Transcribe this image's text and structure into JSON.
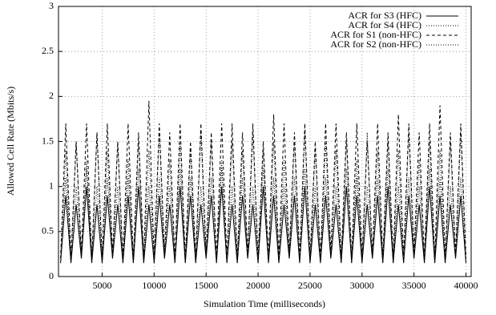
{
  "chart_data": {
    "type": "line",
    "xlabel": "Simulation Time (milliseconds)",
    "ylabel": "Allowed Cell Rate (Mbits/s)",
    "x": [
      1000,
      1500,
      2000,
      2500,
      3000,
      3500,
      4000,
      4500,
      5000,
      5500,
      6000,
      6500,
      7000,
      7500,
      8000,
      8500,
      9000,
      9500,
      10000,
      10500,
      11000,
      11500,
      12000,
      12500,
      13000,
      13500,
      14000,
      14500,
      15000,
      15500,
      16000,
      16500,
      17000,
      17500,
      18000,
      18500,
      19000,
      19500,
      20000,
      20500,
      21000,
      21500,
      22000,
      22500,
      23000,
      23500,
      24000,
      24500,
      25000,
      25500,
      26000,
      26500,
      27000,
      27500,
      28000,
      28500,
      29000,
      29500,
      30000,
      30500,
      31000,
      31500,
      32000,
      32500,
      33000,
      33500,
      34000,
      34500,
      35000,
      35500,
      36000,
      36500,
      37000,
      37500,
      38000,
      38500,
      39000,
      39500,
      40000
    ],
    "series": [
      {
        "name": "ACR for S3 (HFC)",
        "color": "#000000",
        "style": "solid",
        "values": [
          0.15,
          0.9,
          0.15,
          0.8,
          0.2,
          1.0,
          0.15,
          0.8,
          0.15,
          0.9,
          0.2,
          0.8,
          0.15,
          0.9,
          0.15,
          1.0,
          0.15,
          0.8,
          0.15,
          0.9,
          0.2,
          0.8,
          0.15,
          1.0,
          0.15,
          0.9,
          0.15,
          0.8,
          0.2,
          0.9,
          0.15,
          1.0,
          0.15,
          0.8,
          0.15,
          0.9,
          0.2,
          0.8,
          0.15,
          1.0,
          0.15,
          0.9,
          0.15,
          0.8,
          0.2,
          0.9,
          0.15,
          1.0,
          0.15,
          0.8,
          0.15,
          0.9,
          0.2,
          0.8,
          0.15,
          1.0,
          0.15,
          0.9,
          0.15,
          0.8,
          0.2,
          0.9,
          0.15,
          1.0,
          0.15,
          0.8,
          0.15,
          0.9,
          0.2,
          0.8,
          0.15,
          1.0,
          0.15,
          0.9,
          0.15,
          0.8,
          0.2,
          0.9,
          0.15
        ]
      },
      {
        "name": "ACR for S4 (HFC)",
        "color": "#000000",
        "style": "dotted",
        "values": [
          0.2,
          1.1,
          0.2,
          1.0,
          0.25,
          1.2,
          0.2,
          1.0,
          0.2,
          1.1,
          0.25,
          1.0,
          0.2,
          1.1,
          0.2,
          1.2,
          0.2,
          1.0,
          0.2,
          1.1,
          0.25,
          1.0,
          0.2,
          1.2,
          0.2,
          1.1,
          0.2,
          1.0,
          0.25,
          1.1,
          0.2,
          1.2,
          0.2,
          1.0,
          0.2,
          1.1,
          0.25,
          1.0,
          0.2,
          1.2,
          0.2,
          1.1,
          0.2,
          1.0,
          0.25,
          1.1,
          0.2,
          1.2,
          0.2,
          1.0,
          0.2,
          1.1,
          0.25,
          1.0,
          0.2,
          1.2,
          0.2,
          1.1,
          0.2,
          1.0,
          0.25,
          1.1,
          0.2,
          1.2,
          0.2,
          1.0,
          0.2,
          1.1,
          0.25,
          1.0,
          0.2,
          1.2,
          0.2,
          1.1,
          0.2,
          1.0,
          0.25,
          1.1,
          0.2
        ]
      },
      {
        "name": "ACR for S1 (non-HFC)",
        "color": "#000000",
        "style": "dashed",
        "values": [
          0.2,
          1.7,
          0.2,
          1.5,
          0.25,
          1.7,
          0.2,
          1.6,
          0.2,
          1.7,
          0.25,
          1.5,
          0.2,
          1.7,
          0.2,
          1.6,
          0.2,
          1.95,
          0.2,
          1.7,
          0.25,
          1.6,
          0.2,
          1.7,
          0.2,
          1.5,
          0.2,
          1.7,
          0.25,
          1.6,
          0.2,
          1.7,
          0.2,
          1.7,
          0.2,
          1.6,
          0.25,
          1.7,
          0.2,
          1.5,
          0.2,
          1.8,
          0.2,
          1.7,
          0.25,
          1.6,
          0.2,
          1.7,
          0.2,
          1.5,
          0.2,
          1.7,
          0.25,
          1.7,
          0.2,
          1.6,
          0.2,
          1.7,
          0.2,
          1.5,
          0.25,
          1.7,
          0.2,
          1.6,
          0.2,
          1.8,
          0.2,
          1.7,
          0.25,
          1.6,
          0.2,
          1.7,
          0.2,
          1.9,
          0.2,
          1.6,
          0.25,
          1.7,
          0.2
        ]
      },
      {
        "name": "ACR for S2 (non-HFC)",
        "color": "#000000",
        "style": "dotted",
        "values": [
          0.15,
          1.4,
          0.15,
          1.5,
          0.2,
          1.3,
          0.15,
          1.6,
          0.15,
          1.4,
          0.2,
          1.5,
          0.15,
          1.3,
          0.15,
          1.5,
          0.15,
          1.4,
          0.15,
          1.6,
          0.2,
          1.3,
          0.15,
          1.5,
          0.15,
          1.4,
          0.15,
          1.6,
          0.2,
          1.5,
          0.15,
          1.3,
          0.15,
          1.5,
          0.15,
          1.4,
          0.2,
          1.6,
          0.15,
          1.4,
          0.15,
          1.5,
          0.15,
          1.3,
          0.2,
          1.5,
          0.15,
          1.6,
          0.15,
          1.4,
          0.15,
          1.5,
          0.2,
          1.4,
          0.15,
          1.5,
          0.15,
          1.3,
          0.15,
          1.6,
          0.2,
          1.4,
          0.15,
          1.5,
          0.15,
          1.4,
          0.15,
          1.6,
          0.2,
          1.3,
          0.15,
          1.5,
          0.15,
          1.4,
          0.15,
          1.5,
          0.2,
          1.6,
          0.15
        ]
      }
    ],
    "xlim": [
      800,
      40500
    ],
    "xticks": [
      5000,
      10000,
      15000,
      20000,
      25000,
      30000,
      35000,
      40000
    ],
    "ylim": [
      0,
      3
    ],
    "yticks": [
      0,
      0.5,
      1,
      1.5,
      2,
      2.5,
      3
    ],
    "grid": true,
    "legend": "upper-right"
  }
}
